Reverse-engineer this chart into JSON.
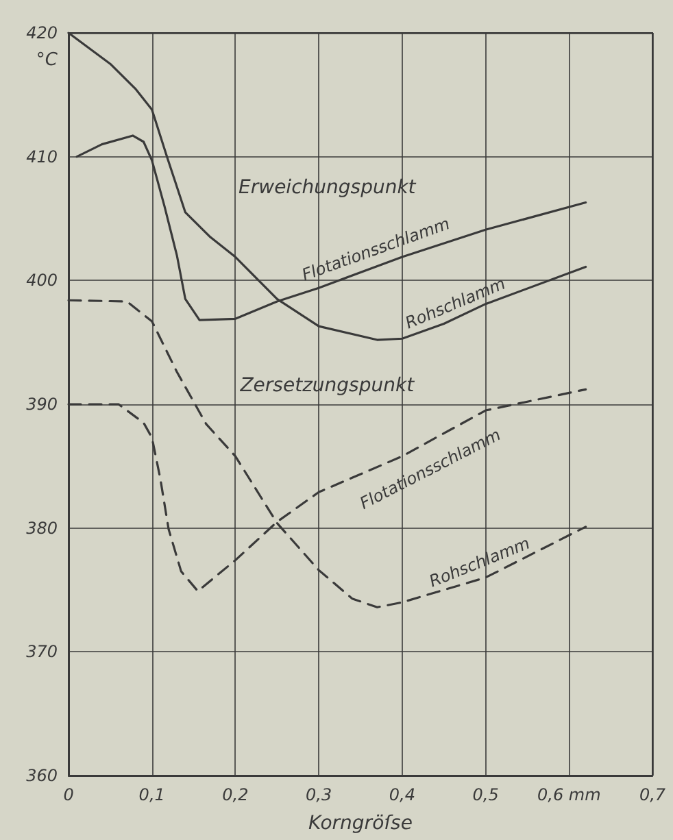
{
  "chart_data": {
    "type": "line",
    "xlabel": "Korngröſse",
    "ylabel": "°C",
    "annotations": [
      "Erweichungspunkt",
      "Zersetzungspunkt"
    ],
    "xlim": [
      0,
      0.7
    ],
    "ylim": [
      360,
      420
    ],
    "xticks": [
      {
        "value": 0,
        "label": "0"
      },
      {
        "value": 0.1,
        "label": "0,1"
      },
      {
        "value": 0.2,
        "label": "0,2"
      },
      {
        "value": 0.3,
        "label": "0,3"
      },
      {
        "value": 0.4,
        "label": "0,4"
      },
      {
        "value": 0.5,
        "label": "0,5"
      },
      {
        "value": 0.6,
        "label": "0,6 mm"
      },
      {
        "value": 0.7,
        "label": "0,7"
      }
    ],
    "yticks": [
      360,
      370,
      380,
      390,
      400,
      410,
      420
    ],
    "grid": true,
    "marker": "none",
    "legend": false,
    "series": [
      {
        "name": "Flotationsschlamm",
        "color": "#3a3a3a",
        "line_style": "solid",
        "x": [
          0.01,
          0.04,
          0.077,
          0.09,
          0.1,
          0.115,
          0.13,
          0.14,
          0.157,
          0.2,
          0.25,
          0.3,
          0.4,
          0.5,
          0.62
        ],
        "values": [
          410,
          411,
          411.7,
          411.2,
          409.7,
          406,
          402,
          398.5,
          396.8,
          396.9,
          398.3,
          399.4,
          401.9,
          404.1,
          406.3
        ]
      },
      {
        "name": "Rohschlamm",
        "color": "#3a3a3a",
        "line_style": "solid",
        "x": [
          0,
          0.05,
          0.08,
          0.1,
          0.118,
          0.14,
          0.17,
          0.2,
          0.25,
          0.3,
          0.37,
          0.4,
          0.45,
          0.5,
          0.62
        ],
        "values": [
          420,
          417.5,
          415.5,
          413.8,
          410,
          405.5,
          403.5,
          401.9,
          398.5,
          396.3,
          395.2,
          395.3,
          396.5,
          398.1,
          401.1
        ]
      },
      {
        "name": "Flotationsschlamm",
        "color": "#3a3a3a",
        "line_style": "dashed",
        "x": [
          0,
          0.06,
          0.09,
          0.1,
          0.11,
          0.12,
          0.135,
          0.155,
          0.2,
          0.25,
          0.3,
          0.4,
          0.5,
          0.62
        ],
        "values": [
          390,
          390,
          388.5,
          387.3,
          384,
          379.9,
          376.5,
          374.9,
          377.4,
          380.5,
          382.9,
          385.8,
          389.5,
          391.2
        ]
      },
      {
        "name": "Rohschlamm",
        "color": "#3a3a3a",
        "line_style": "dashed",
        "x": [
          0,
          0.07,
          0.1,
          0.13,
          0.165,
          0.2,
          0.25,
          0.3,
          0.34,
          0.37,
          0.4,
          0.5,
          0.62
        ],
        "values": [
          398.4,
          398.3,
          396.7,
          392.6,
          388.4,
          385.8,
          380.4,
          376.6,
          374.3,
          373.6,
          374,
          376,
          380.1
        ]
      }
    ]
  }
}
